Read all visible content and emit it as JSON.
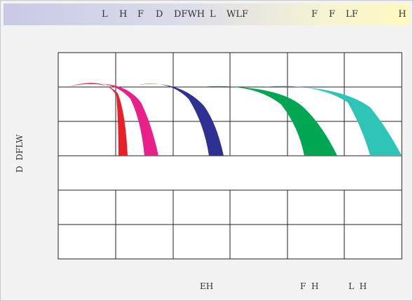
{
  "header": {
    "labels": [
      "L",
      "H",
      "F",
      "D",
      "DFWH",
      "L",
      "WLF",
      "F",
      "F",
      "LF",
      "H"
    ]
  },
  "side_label": "D  DFLW",
  "bottom_labels": [
    "EH",
    "F  H",
    "L  H"
  ],
  "arcs": [
    {
      "name": "red",
      "color": "#e8202a"
    },
    {
      "name": "magenta",
      "color": "#e8208a"
    },
    {
      "name": "navy",
      "color": "#2e3192"
    },
    {
      "name": "green",
      "color": "#00a651"
    },
    {
      "name": "teal",
      "color": "#2ec4b6"
    }
  ]
}
